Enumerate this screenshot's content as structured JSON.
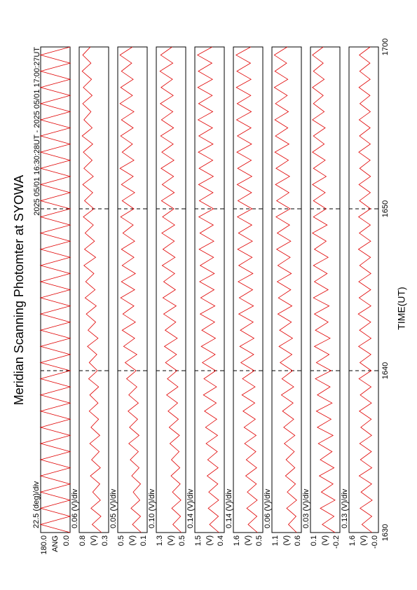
{
  "chart_data": {
    "type": "line",
    "title": "Meridian Scanning Photomter at SYOWA",
    "subtitle": "2025 05/01 16:30:28UT - 2025 05/01 17:00:27UT",
    "xlabel": "TIME(UT)",
    "xlim": [
      0,
      30
    ],
    "xticks": [
      {
        "value": 0,
        "label": "1630"
      },
      {
        "value": 10,
        "label": "1640"
      },
      {
        "value": 20,
        "label": "1650"
      },
      {
        "value": 30,
        "label": "1700"
      }
    ],
    "grid": true,
    "x": [
      0,
      0.5,
      1,
      1.5,
      2,
      2.5,
      3,
      3.5,
      4,
      4.5,
      5,
      5.5,
      6,
      6.5,
      7,
      7.5,
      8,
      8.5,
      9,
      9.5,
      10,
      10.5,
      11,
      11.5,
      12,
      12.5,
      13,
      13.5,
      14,
      14.5,
      15,
      15.5,
      16,
      16.5,
      17,
      17.5,
      18,
      18.5,
      19,
      19.5,
      20,
      20.5,
      21,
      21.5,
      22,
      22.5,
      23,
      23.5,
      24,
      24.5,
      25,
      25.5,
      26,
      26.5,
      27,
      27.5,
      28,
      28.5,
      29,
      29.5,
      30
    ],
    "panels": [
      {
        "ylabel": "ANG",
        "scale": "22.5 (deg)/div",
        "ylim": [
          0,
          180
        ],
        "yticks": [
          {
            "value": 0,
            "label": "0.0"
          },
          {
            "value": 180,
            "label": "180.0"
          }
        ],
        "series": [
          {
            "color": "#e00000",
            "values": [
              0,
              180,
              0,
              180,
              0,
              180,
              0,
              180,
              0,
              180,
              0,
              180,
              0,
              180,
              0,
              180,
              0,
              180,
              0,
              180,
              0,
              180,
              0,
              180,
              0,
              180,
              0,
              180,
              0,
              180,
              0,
              180,
              0,
              180,
              0,
              180,
              0,
              180,
              0,
              180,
              0,
              180,
              0,
              180,
              0,
              180,
              0,
              180,
              0,
              180,
              0,
              180,
              0,
              180,
              0,
              180,
              0,
              180,
              0,
              180,
              0
            ]
          }
        ]
      },
      {
        "ylabel": "(V)",
        "scale": "0.06 (V)/div",
        "ylim": [
          0.3,
          0.8
        ],
        "yticks": [
          0.3,
          0.8
        ],
        "series": [
          {
            "color": "#e00000",
            "values": [
              0.42,
              0.58,
              0.43,
              0.6,
              0.44,
              0.57,
              0.45,
              0.61,
              0.44,
              0.59,
              0.46,
              0.62,
              0.45,
              0.6,
              0.47,
              0.63,
              0.48,
              0.62,
              0.47,
              0.64,
              0.49,
              0.63,
              0.5,
              0.66,
              0.48,
              0.65,
              0.52,
              0.68,
              0.51,
              0.7,
              0.53,
              0.69,
              0.55,
              0.72,
              0.52,
              0.71,
              0.54,
              0.7,
              0.56,
              0.73,
              0.55,
              0.71,
              0.57,
              0.74,
              0.56,
              0.72,
              0.58,
              0.73,
              0.57,
              0.75,
              0.58,
              0.72,
              0.6,
              0.74,
              0.58,
              0.73,
              0.59,
              0.75,
              0.6,
              0.74,
              0.61
            ]
          }
        ]
      },
      {
        "ylabel": "(V)",
        "scale": "0.05 (V)/div",
        "ylim": [
          0.1,
          0.5
        ],
        "yticks": [
          0.1,
          0.5
        ],
        "series": [
          {
            "color": "#e00000",
            "values": [
              0.18,
              0.3,
              0.19,
              0.32,
              0.2,
              0.29,
              0.19,
              0.31,
              0.21,
              0.33,
              0.22,
              0.35,
              0.21,
              0.34,
              0.23,
              0.36,
              0.22,
              0.35,
              0.24,
              0.38,
              0.25,
              0.4,
              0.24,
              0.42,
              0.27,
              0.44,
              0.26,
              0.43,
              0.28,
              0.46,
              0.27,
              0.45,
              0.26,
              0.44,
              0.28,
              0.45,
              0.27,
              0.43,
              0.29,
              0.46,
              0.28,
              0.44,
              0.27,
              0.45,
              0.29,
              0.47,
              0.28,
              0.44,
              0.3,
              0.46,
              0.29,
              0.45,
              0.28,
              0.47,
              0.3,
              0.46,
              0.29,
              0.45,
              0.31,
              0.47,
              0.3
            ]
          }
        ]
      },
      {
        "ylabel": "(V)",
        "scale": "0.10 (V)/div",
        "ylim": [
          0.5,
          1.3
        ],
        "yticks": [
          0.5,
          1.3
        ],
        "series": [
          {
            "color": "#e00000",
            "values": [
              0.62,
              0.85,
              0.64,
              0.88,
              0.63,
              0.86,
              0.65,
              0.9,
              0.66,
              0.89,
              0.68,
              0.93,
              0.67,
              0.95,
              0.7,
              0.98,
              0.72,
              1.02,
              0.71,
              1.0,
              0.74,
              1.05,
              0.75,
              1.08,
              0.73,
              1.06,
              0.77,
              1.1,
              0.76,
              1.12,
              0.78,
              1.1,
              0.8,
              1.14,
              0.79,
              1.12,
              0.81,
              1.15,
              0.8,
              1.13,
              0.82,
              1.16,
              0.81,
              1.14,
              0.83,
              1.17,
              0.82,
              1.15,
              0.84,
              1.18,
              0.83,
              1.16,
              0.85,
              1.19,
              0.84,
              1.17,
              0.86,
              1.2,
              0.85,
              1.18,
              0.87
            ]
          }
        ]
      },
      {
        "ylabel": "(V)",
        "scale": "0.14 (V)/div",
        "ylim": [
          0.4,
          1.5
        ],
        "yticks": [
          0.4,
          1.5
        ],
        "series": [
          {
            "color": "#e00000",
            "values": [
              0.6,
              0.95,
              0.62,
              1.0,
              0.61,
              0.98,
              0.64,
              1.04,
              0.63,
              1.02,
              0.66,
              1.08,
              0.65,
              1.1,
              0.68,
              1.14,
              0.7,
              1.18,
              0.69,
              1.16,
              0.72,
              1.22,
              0.74,
              1.26,
              0.73,
              1.24,
              0.76,
              1.3,
              0.75,
              1.28,
              0.78,
              1.32,
              0.77,
              1.3,
              0.8,
              1.34,
              0.79,
              1.31,
              0.81,
              1.35,
              0.8,
              1.33,
              0.82,
              1.36,
              0.81,
              1.34,
              0.83,
              1.37,
              0.82,
              1.35,
              0.84,
              1.38,
              0.83,
              1.36,
              0.85,
              1.39,
              0.84,
              1.37,
              0.86,
              1.4,
              0.85
            ]
          }
        ]
      },
      {
        "ylabel": "(V)",
        "scale": "0.14 (V)/div",
        "ylim": [
          0.5,
          1.6
        ],
        "yticks": [
          0.5,
          1.6
        ],
        "series": [
          {
            "color": "#e00000",
            "values": [
              0.7,
              1.05,
              0.72,
              1.1,
              0.71,
              1.08,
              0.74,
              1.14,
              0.73,
              1.12,
              0.76,
              1.18,
              0.75,
              1.2,
              0.78,
              1.24,
              0.8,
              1.28,
              0.79,
              1.26,
              0.82,
              1.32,
              0.84,
              1.36,
              0.83,
              1.34,
              0.86,
              1.4,
              0.85,
              1.38,
              0.88,
              1.42,
              0.87,
              1.4,
              0.9,
              1.44,
              0.89,
              1.41,
              0.91,
              1.45,
              0.9,
              1.43,
              0.92,
              1.46,
              0.91,
              1.44,
              0.93,
              1.47,
              0.92,
              1.45,
              0.94,
              1.48,
              0.93,
              1.46,
              0.95,
              1.49,
              0.94,
              1.47,
              0.96,
              1.5,
              0.95
            ]
          }
        ]
      },
      {
        "ylabel": "(V)",
        "scale": "0.06 (V)/div",
        "ylim": [
          0.6,
          1.1
        ],
        "yticks": [
          0.6,
          1.1
        ],
        "series": [
          {
            "color": "#e00000",
            "values": [
              0.68,
              0.82,
              0.69,
              0.85,
              0.68,
              0.84,
              0.7,
              0.87,
              0.71,
              0.86,
              0.72,
              0.89,
              0.71,
              0.9,
              0.73,
              0.92,
              0.74,
              0.94,
              0.73,
              0.93,
              0.75,
              0.96,
              0.76,
              0.98,
              0.75,
              0.97,
              0.77,
              1.0,
              0.76,
              0.99,
              0.78,
              1.01,
              0.77,
              1.0,
              0.79,
              1.02,
              0.78,
              1.01,
              0.8,
              1.03,
              0.79,
              1.02,
              0.81,
              1.04,
              0.8,
              1.03,
              0.82,
              1.05,
              0.81,
              1.04,
              0.83,
              1.05,
              0.82,
              1.04,
              0.84,
              1.06,
              0.83,
              1.05,
              0.85,
              1.06,
              0.84
            ]
          }
        ]
      },
      {
        "ylabel": "(V)",
        "scale": "0.03 (V)/div",
        "ylim": [
          -0.2,
          0.1
        ],
        "yticks": [
          -0.2,
          0.1
        ],
        "series": [
          {
            "color": "#e00000",
            "values": [
              -0.15,
              -0.02,
              -0.14,
              0.0,
              -0.15,
              -0.01,
              -0.13,
              0.01,
              -0.14,
              0.0,
              -0.12,
              0.02,
              -0.13,
              0.03,
              -0.11,
              0.04,
              -0.12,
              0.03,
              -0.1,
              0.05,
              -0.11,
              0.04,
              -0.09,
              0.06,
              -0.1,
              0.05,
              -0.08,
              0.06,
              -0.09,
              0.07,
              -0.08,
              0.06,
              -0.07,
              0.07,
              -0.08,
              0.06,
              -0.06,
              0.08,
              -0.07,
              0.07,
              -0.06,
              0.07,
              -0.05,
              0.08,
              -0.06,
              0.07,
              -0.05,
              0.08,
              -0.04,
              0.07,
              -0.05,
              0.08,
              -0.04,
              0.07,
              -0.03,
              0.08,
              -0.04,
              0.07,
              -0.03,
              0.08,
              -0.03
            ]
          }
        ]
      },
      {
        "ylabel": "(V)",
        "scale": "0.13 (V)/div",
        "ylim": [
          0,
          1.6
        ],
        "yticks": [
          {
            "value": 0,
            "label": "-0.0"
          },
          1.6
        ],
        "series": [
          {
            "color": "#e00000",
            "values": [
              0.35,
              0.9,
              0.36,
              1.0,
              0.34,
              0.95,
              0.37,
              1.05,
              0.36,
              0.98,
              0.38,
              1.02,
              0.37,
              0.96,
              0.39,
              1.04,
              0.38,
              0.99,
              0.4,
              1.06,
              0.39,
              1.01,
              0.41,
              1.08,
              0.4,
              1.03,
              0.42,
              1.1,
              0.41,
              1.05,
              0.42,
              1.07,
              0.41,
              1.02,
              0.43,
              1.09,
              0.42,
              1.04,
              0.44,
              1.08,
              0.43,
              1.03,
              0.44,
              1.06,
              0.43,
              1.02,
              0.45,
              1.07,
              0.44,
              1.03,
              0.45,
              1.05,
              0.44,
              1.01,
              0.46,
              1.06,
              0.45,
              1.02,
              0.46,
              1.04,
              0.45
            ]
          }
        ]
      }
    ]
  }
}
